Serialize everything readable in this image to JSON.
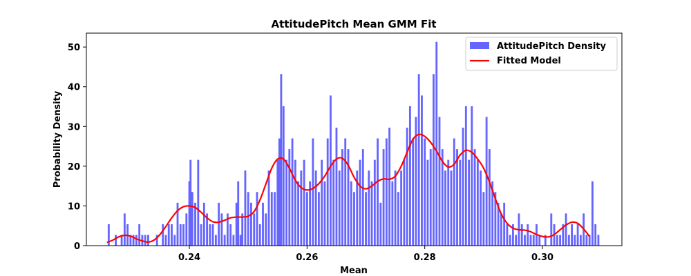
{
  "chart_data": {
    "type": "bar",
    "title": "AttitudePitch Mean GMM Fit",
    "xlabel": "Mean",
    "ylabel": "Probability Density",
    "xlim": [
      0.2225,
      0.3135
    ],
    "ylim": [
      0,
      53.5
    ],
    "xticks": [
      0.24,
      0.26,
      0.28,
      0.3
    ],
    "xtick_labels": [
      "0.24",
      "0.26",
      "0.28",
      "0.30"
    ],
    "yticks": [
      0,
      10,
      20,
      30,
      40,
      50
    ],
    "ytick_labels": [
      "0",
      "10",
      "20",
      "30",
      "40",
      "50"
    ],
    "grid": false,
    "legend_position": "top-right",
    "colors": {
      "histogram": "#6666ff",
      "fit": "#ff0000"
    },
    "histogram": {
      "name": "AttitudePitch Density",
      "bin_width": 0.000336,
      "bins": [
        [
          0.2263,
          5.4
        ],
        [
          0.227,
          0.0
        ],
        [
          0.2275,
          2.7
        ],
        [
          0.2285,
          2.7
        ],
        [
          0.229,
          8.1
        ],
        [
          0.2295,
          5.4
        ],
        [
          0.23,
          2.7
        ],
        [
          0.2305,
          2.7
        ],
        [
          0.231,
          2.7
        ],
        [
          0.2315,
          5.4
        ],
        [
          0.232,
          2.7
        ],
        [
          0.2325,
          2.7
        ],
        [
          0.233,
          2.7
        ],
        [
          0.2345,
          2.7
        ],
        [
          0.2355,
          5.4
        ],
        [
          0.236,
          2.7
        ],
        [
          0.2365,
          5.4
        ],
        [
          0.237,
          5.4
        ],
        [
          0.2375,
          2.7
        ],
        [
          0.238,
          10.8
        ],
        [
          0.2385,
          5.4
        ],
        [
          0.239,
          5.4
        ],
        [
          0.2395,
          8.1
        ],
        [
          0.24,
          16.2
        ],
        [
          0.2402,
          21.6
        ],
        [
          0.2405,
          13.5
        ],
        [
          0.241,
          10.8
        ],
        [
          0.2415,
          21.6
        ],
        [
          0.242,
          5.4
        ],
        [
          0.2425,
          10.8
        ],
        [
          0.243,
          8.1
        ],
        [
          0.2435,
          5.4
        ],
        [
          0.244,
          5.4
        ],
        [
          0.2445,
          2.7
        ],
        [
          0.245,
          10.8
        ],
        [
          0.2455,
          8.1
        ],
        [
          0.246,
          2.7
        ],
        [
          0.2465,
          8.1
        ],
        [
          0.247,
          5.4
        ],
        [
          0.2475,
          2.7
        ],
        [
          0.248,
          10.8
        ],
        [
          0.2483,
          16.2
        ],
        [
          0.2487,
          2.7
        ],
        [
          0.249,
          8.1
        ],
        [
          0.2495,
          18.9
        ],
        [
          0.25,
          13.5
        ],
        [
          0.2505,
          10.8
        ],
        [
          0.251,
          8.1
        ],
        [
          0.2515,
          13.5
        ],
        [
          0.252,
          5.4
        ],
        [
          0.2525,
          10.8
        ],
        [
          0.253,
          8.1
        ],
        [
          0.2535,
          18.9
        ],
        [
          0.254,
          13.5
        ],
        [
          0.2545,
          13.5
        ],
        [
          0.255,
          21.6
        ],
        [
          0.2553,
          27.0
        ],
        [
          0.2556,
          43.2
        ],
        [
          0.256,
          35.1
        ],
        [
          0.2565,
          21.6
        ],
        [
          0.257,
          24.3
        ],
        [
          0.2575,
          27.0
        ],
        [
          0.258,
          21.6
        ],
        [
          0.2585,
          16.2
        ],
        [
          0.259,
          18.9
        ],
        [
          0.2595,
          21.6
        ],
        [
          0.26,
          13.5
        ],
        [
          0.2605,
          16.2
        ],
        [
          0.261,
          27.0
        ],
        [
          0.2615,
          18.9
        ],
        [
          0.262,
          13.5
        ],
        [
          0.2625,
          21.6
        ],
        [
          0.263,
          16.2
        ],
        [
          0.2635,
          27.0
        ],
        [
          0.264,
          37.8
        ],
        [
          0.2645,
          21.6
        ],
        [
          0.265,
          29.7
        ],
        [
          0.2655,
          18.9
        ],
        [
          0.266,
          24.3
        ],
        [
          0.2665,
          27.0
        ],
        [
          0.267,
          24.3
        ],
        [
          0.2675,
          16.2
        ],
        [
          0.268,
          13.5
        ],
        [
          0.2685,
          18.9
        ],
        [
          0.269,
          21.6
        ],
        [
          0.2695,
          24.3
        ],
        [
          0.27,
          13.5
        ],
        [
          0.2705,
          18.9
        ],
        [
          0.271,
          16.2
        ],
        [
          0.2715,
          21.6
        ],
        [
          0.272,
          27.0
        ],
        [
          0.2725,
          10.8
        ],
        [
          0.273,
          24.3
        ],
        [
          0.2735,
          27.0
        ],
        [
          0.274,
          29.7
        ],
        [
          0.2745,
          16.2
        ],
        [
          0.275,
          18.9
        ],
        [
          0.2755,
          13.5
        ],
        [
          0.276,
          18.9
        ],
        [
          0.2765,
          21.6
        ],
        [
          0.277,
          29.7
        ],
        [
          0.2775,
          35.1
        ],
        [
          0.278,
          27.0
        ],
        [
          0.2785,
          32.4
        ],
        [
          0.279,
          43.2
        ],
        [
          0.2795,
          37.8
        ],
        [
          0.28,
          27.0
        ],
        [
          0.2805,
          21.6
        ],
        [
          0.281,
          24.3
        ],
        [
          0.2815,
          43.2
        ],
        [
          0.282,
          51.3
        ],
        [
          0.2825,
          32.4
        ],
        [
          0.283,
          24.3
        ],
        [
          0.2835,
          18.9
        ],
        [
          0.284,
          21.6
        ],
        [
          0.2845,
          18.9
        ],
        [
          0.285,
          27.0
        ],
        [
          0.2855,
          24.3
        ],
        [
          0.286,
          21.6
        ],
        [
          0.2865,
          29.7
        ],
        [
          0.287,
          35.1
        ],
        [
          0.2875,
          21.6
        ],
        [
          0.288,
          35.1
        ],
        [
          0.2885,
          24.3
        ],
        [
          0.289,
          21.6
        ],
        [
          0.2895,
          18.9
        ],
        [
          0.29,
          13.5
        ],
        [
          0.2905,
          32.4
        ],
        [
          0.291,
          24.3
        ],
        [
          0.2915,
          16.2
        ],
        [
          0.292,
          13.5
        ],
        [
          0.2925,
          10.8
        ],
        [
          0.293,
          8.1
        ],
        [
          0.2935,
          10.8
        ],
        [
          0.294,
          5.4
        ],
        [
          0.2945,
          2.7
        ],
        [
          0.295,
          5.4
        ],
        [
          0.2955,
          2.7
        ],
        [
          0.296,
          8.1
        ],
        [
          0.2965,
          5.4
        ],
        [
          0.297,
          2.7
        ],
        [
          0.2975,
          5.4
        ],
        [
          0.298,
          2.7
        ],
        [
          0.2985,
          2.7
        ],
        [
          0.299,
          5.4
        ],
        [
          0.2995,
          2.7
        ],
        [
          0.3005,
          2.7
        ],
        [
          0.3015,
          8.1
        ],
        [
          0.302,
          5.4
        ],
        [
          0.3025,
          2.7
        ],
        [
          0.303,
          2.7
        ],
        [
          0.3035,
          5.4
        ],
        [
          0.304,
          8.1
        ],
        [
          0.3045,
          2.7
        ],
        [
          0.305,
          5.4
        ],
        [
          0.3055,
          2.7
        ],
        [
          0.306,
          5.4
        ],
        [
          0.3065,
          2.7
        ],
        [
          0.307,
          8.1
        ],
        [
          0.3075,
          2.7
        ],
        [
          0.308,
          2.7
        ],
        [
          0.3085,
          16.2
        ],
        [
          0.309,
          5.4
        ],
        [
          0.3095,
          2.7
        ]
      ]
    },
    "fit": {
      "name": "Fitted Model",
      "points": [
        [
          0.226,
          0.8
        ],
        [
          0.227,
          1.4
        ],
        [
          0.228,
          2.2
        ],
        [
          0.229,
          2.6
        ],
        [
          0.23,
          2.4
        ],
        [
          0.231,
          1.7
        ],
        [
          0.232,
          1.2
        ],
        [
          0.233,
          0.9
        ],
        [
          0.234,
          1.4
        ],
        [
          0.235,
          2.8
        ],
        [
          0.236,
          4.8
        ],
        [
          0.237,
          7.0
        ],
        [
          0.238,
          8.8
        ],
        [
          0.239,
          9.8
        ],
        [
          0.24,
          10.0
        ],
        [
          0.241,
          9.6
        ],
        [
          0.242,
          8.4
        ],
        [
          0.243,
          7.0
        ],
        [
          0.244,
          6.0
        ],
        [
          0.245,
          5.9
        ],
        [
          0.246,
          6.4
        ],
        [
          0.247,
          7.0
        ],
        [
          0.248,
          7.2
        ],
        [
          0.249,
          7.2
        ],
        [
          0.25,
          7.4
        ],
        [
          0.251,
          8.6
        ],
        [
          0.252,
          11.5
        ],
        [
          0.253,
          15.5
        ],
        [
          0.254,
          19.5
        ],
        [
          0.255,
          21.8
        ],
        [
          0.256,
          21.8
        ],
        [
          0.257,
          19.5
        ],
        [
          0.258,
          16.5
        ],
        [
          0.259,
          14.6
        ],
        [
          0.26,
          14.0
        ],
        [
          0.261,
          14.4
        ],
        [
          0.262,
          15.6
        ],
        [
          0.263,
          17.5
        ],
        [
          0.264,
          20.0
        ],
        [
          0.265,
          21.8
        ],
        [
          0.266,
          22.0
        ],
        [
          0.267,
          20.2
        ],
        [
          0.268,
          17.2
        ],
        [
          0.269,
          15.0
        ],
        [
          0.27,
          14.3
        ],
        [
          0.271,
          15.0
        ],
        [
          0.272,
          16.2
        ],
        [
          0.273,
          16.8
        ],
        [
          0.274,
          16.7
        ],
        [
          0.275,
          17.5
        ],
        [
          0.276,
          20.0
        ],
        [
          0.277,
          23.5
        ],
        [
          0.278,
          26.8
        ],
        [
          0.279,
          28.0
        ],
        [
          0.28,
          27.5
        ],
        [
          0.281,
          26.0
        ],
        [
          0.282,
          23.8
        ],
        [
          0.283,
          21.2
        ],
        [
          0.284,
          19.8
        ],
        [
          0.285,
          20.5
        ],
        [
          0.286,
          22.8
        ],
        [
          0.287,
          24.0
        ],
        [
          0.288,
          23.5
        ],
        [
          0.289,
          21.8
        ],
        [
          0.29,
          19.5
        ],
        [
          0.291,
          16.0
        ],
        [
          0.292,
          11.8
        ],
        [
          0.293,
          8.0
        ],
        [
          0.294,
          5.6
        ],
        [
          0.295,
          4.4
        ],
        [
          0.296,
          4.0
        ],
        [
          0.297,
          3.9
        ],
        [
          0.298,
          3.5
        ],
        [
          0.299,
          2.8
        ],
        [
          0.3,
          2.3
        ],
        [
          0.301,
          2.2
        ],
        [
          0.302,
          2.8
        ],
        [
          0.303,
          4.0
        ],
        [
          0.304,
          5.2
        ],
        [
          0.305,
          5.9
        ],
        [
          0.306,
          5.6
        ],
        [
          0.307,
          4.2
        ],
        [
          0.308,
          2.3
        ]
      ]
    }
  }
}
